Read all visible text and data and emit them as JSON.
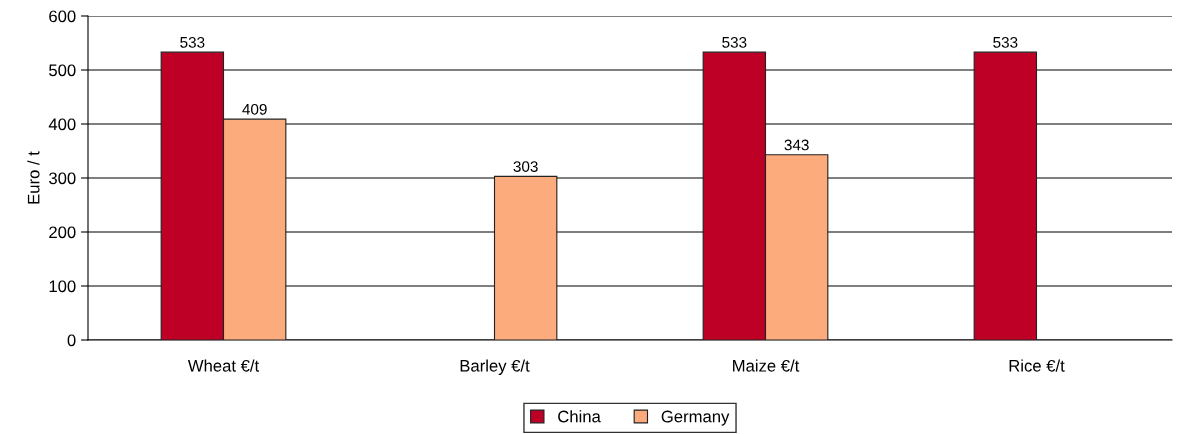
{
  "chart_data": {
    "type": "bar",
    "ylabel": "Euro / t",
    "categories": [
      "Wheat €/t",
      "Barley €/t",
      "Maize €/t",
      "Rice €/t"
    ],
    "series": [
      {
        "name": "China",
        "color": "#be0027",
        "values": [
          533,
          null,
          533,
          533
        ]
      },
      {
        "name": "Germany",
        "color": "#fcab7c",
        "values": [
          409,
          303,
          343,
          null
        ]
      }
    ],
    "ylim": [
      0,
      600
    ],
    "yticks": [
      0,
      100,
      200,
      300,
      400,
      500,
      600
    ],
    "grid": "y",
    "legend": "bottom",
    "data_labels": true
  }
}
